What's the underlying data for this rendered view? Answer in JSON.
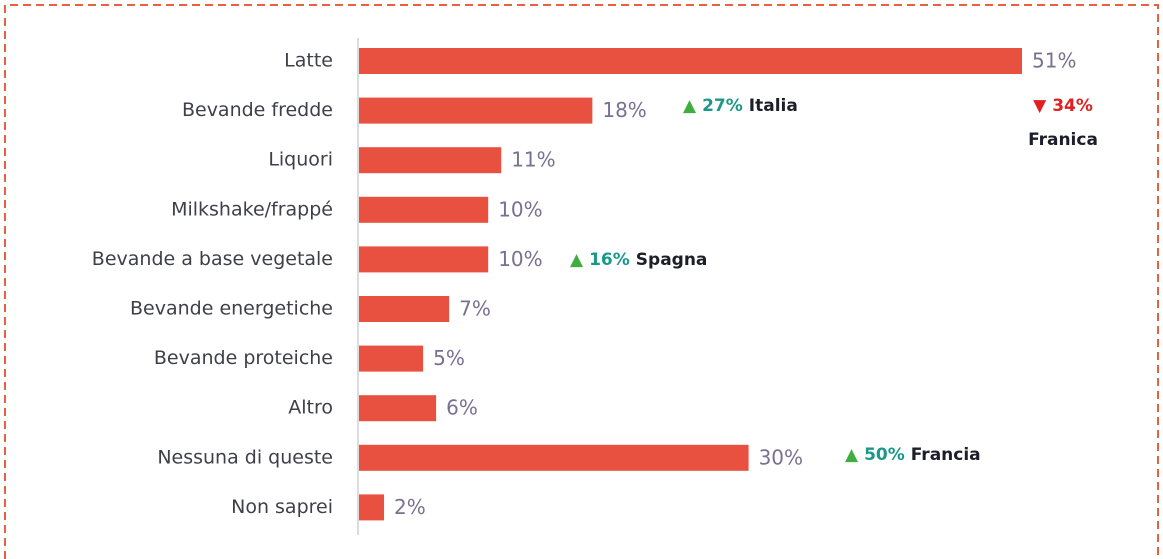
{
  "chart_data": {
    "type": "bar",
    "orientation": "horizontal",
    "categories": [
      "Latte",
      "Bevande fredde",
      "Liquori",
      "Milkshake/frappé",
      "Bevande a base vegetale",
      "Bevande energetiche",
      "Bevande proteiche",
      "Altro",
      "Nessuna di queste",
      "Non saprei"
    ],
    "values": [
      51,
      18,
      11,
      10,
      10,
      7,
      5,
      6,
      30,
      2
    ],
    "value_labels": [
      "51%",
      "18%",
      "11%",
      "10%",
      "10%",
      "7%",
      "5%",
      "6%",
      "30%",
      "2%"
    ],
    "color": "#e8503f",
    "annotations": [
      {
        "marker": "▲",
        "value": "27%",
        "country": "Italia",
        "marker_color": "#3fae3f",
        "value_color": "#1a9988"
      },
      {
        "marker": "▼",
        "value": "34%",
        "country": "Franica",
        "marker_color": "#e02020",
        "value_color": "#e02020"
      },
      {
        "marker": "▲",
        "value": "16%",
        "country": "Spagna",
        "marker_color": "#3fae3f",
        "value_color": "#1a9988"
      },
      {
        "marker": "▲",
        "value": "50%",
        "country": "Francia",
        "marker_color": "#3fae3f",
        "value_color": "#1a9988"
      }
    ]
  }
}
